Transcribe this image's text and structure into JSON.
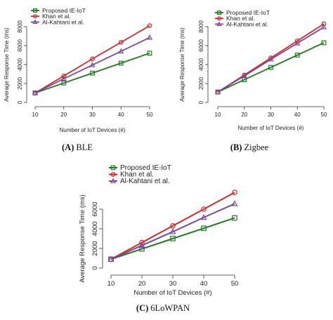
{
  "chart_data": [
    {
      "type": "line",
      "caption_letter": "(A)",
      "caption_name": "BLE",
      "xlabel": "Number of IoT Devices (#)",
      "ylabel": "Average Response Time (ms)",
      "x": [
        10,
        20,
        30,
        40,
        50
      ],
      "xlim": [
        10,
        50
      ],
      "ylim": [
        0,
        8000
      ],
      "yticks": [
        0,
        2000,
        4000,
        6000,
        8000
      ],
      "legend_position": "top-left",
      "grid": false,
      "series": [
        {
          "name": "Proposed IE-IoT",
          "color": "#1e7a1e",
          "marker": "square",
          "values": [
            1000,
            2050,
            3100,
            4150,
            5200
          ]
        },
        {
          "name": "Khan et al.",
          "color": "#d62728",
          "marker": "circle",
          "values": [
            1000,
            2800,
            4600,
            6350,
            8100
          ]
        },
        {
          "name": "Al-Kahtani et al.",
          "color": "#7a4a9c",
          "marker": "triangle",
          "values": [
            1000,
            2500,
            3950,
            5400,
            6850
          ]
        }
      ]
    },
    {
      "type": "line",
      "caption_letter": "(B)",
      "caption_name": "Zigbee",
      "xlabel": "Number of IoT Devices (#)",
      "ylabel": "Average Response Time (ms)",
      "x": [
        10,
        20,
        30,
        40,
        50
      ],
      "xlim": [
        10,
        50
      ],
      "ylim": [
        0,
        8000
      ],
      "yticks": [
        0,
        2000,
        4000,
        6000,
        8000
      ],
      "legend_position": "top-left",
      "grid": false,
      "series": [
        {
          "name": "Proposed IE-IoT",
          "color": "#1e7a1e",
          "marker": "square",
          "values": [
            1100,
            2400,
            3700,
            5000,
            6300
          ]
        },
        {
          "name": "Khan et al.",
          "color": "#d62728",
          "marker": "circle",
          "values": [
            1100,
            2900,
            4700,
            6500,
            8300
          ]
        },
        {
          "name": "Al-Kahtani et al.",
          "color": "#7a4a9c",
          "marker": "triangle",
          "values": [
            1100,
            2800,
            4550,
            6250,
            7950
          ]
        }
      ]
    },
    {
      "type": "line",
      "caption_letter": "(C)",
      "caption_name": "6LoWPAN",
      "xlabel": "Number of IoT Devices (#)",
      "ylabel": "Average Response Time (ms)",
      "x": [
        10,
        20,
        30,
        40,
        50
      ],
      "xlim": [
        10,
        50
      ],
      "ylim": [
        0,
        8000
      ],
      "yticks": [
        0,
        2000,
        4000,
        6000
      ],
      "legend_position": "top-left",
      "grid": false,
      "series": [
        {
          "name": "Proposed IE-IoT",
          "color": "#1e7a1e",
          "marker": "square",
          "values": [
            900,
            1950,
            3000,
            4050,
            5100
          ]
        },
        {
          "name": "Khan et al.",
          "color": "#d62728",
          "marker": "circle",
          "values": [
            900,
            2600,
            4300,
            6000,
            7700
          ]
        },
        {
          "name": "Al-Kahtani et al.",
          "color": "#7a4a9c",
          "marker": "triangle",
          "values": [
            900,
            2300,
            3700,
            5150,
            6550
          ]
        }
      ]
    }
  ]
}
